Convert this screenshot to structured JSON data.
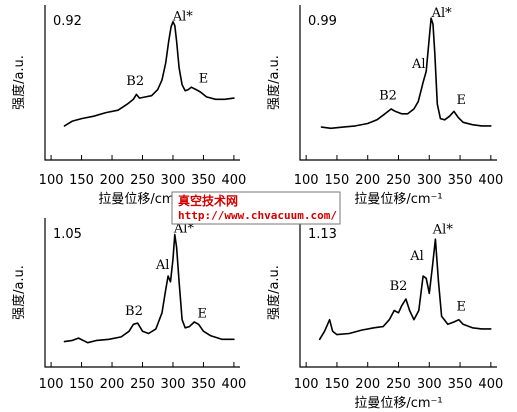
{
  "chart_data": [
    {
      "type": "line",
      "panel_value": "0.92",
      "xlabel": "拉曼位移/cm⁻¹",
      "ylabel": "强度/a.u.",
      "xticks": [
        100,
        150,
        200,
        250,
        300,
        350,
        400
      ],
      "xlim": [
        90,
        410
      ],
      "ylim": [
        0,
        1
      ],
      "x": [
        122,
        135,
        150,
        170,
        190,
        210,
        225,
        235,
        240,
        245,
        255,
        265,
        275,
        282,
        288,
        293,
        297,
        300,
        303,
        306,
        310,
        315,
        320,
        325,
        330,
        338,
        345,
        355,
        370,
        385,
        400
      ],
      "values": [
        0.1,
        0.14,
        0.16,
        0.18,
        0.21,
        0.23,
        0.28,
        0.32,
        0.36,
        0.33,
        0.34,
        0.35,
        0.4,
        0.48,
        0.62,
        0.8,
        0.92,
        0.96,
        0.93,
        0.8,
        0.58,
        0.44,
        0.39,
        0.4,
        0.42,
        0.4,
        0.38,
        0.34,
        0.32,
        0.32,
        0.33
      ],
      "peak_labels": [
        {
          "text": "B2",
          "x": 238,
          "y": 0.44
        },
        {
          "text": "Al*",
          "x": 316,
          "y": 0.97
        },
        {
          "text": "E",
          "x": 350,
          "y": 0.46
        }
      ]
    },
    {
      "type": "line",
      "panel_value": "0.99",
      "xlabel": "拉曼位移/cm⁻¹",
      "ylabel": "强度/a.u.",
      "xticks": [
        100,
        150,
        200,
        250,
        300,
        350,
        400
      ],
      "xlim": [
        90,
        410
      ],
      "ylim": [
        0,
        1
      ],
      "x": [
        125,
        140,
        160,
        180,
        200,
        215,
        228,
        238,
        245,
        255,
        265,
        275,
        282,
        287,
        290,
        295,
        300,
        303,
        306,
        309,
        313,
        318,
        325,
        333,
        340,
        347,
        355,
        370,
        385,
        400
      ],
      "values": [
        0.09,
        0.08,
        0.09,
        0.1,
        0.12,
        0.15,
        0.2,
        0.24,
        0.22,
        0.2,
        0.2,
        0.24,
        0.3,
        0.4,
        0.46,
        0.55,
        0.83,
        0.99,
        0.94,
        0.7,
        0.28,
        0.16,
        0.15,
        0.18,
        0.22,
        0.17,
        0.13,
        0.11,
        0.1,
        0.1
      ],
      "peak_labels": [
        {
          "text": "B2",
          "x": 233,
          "y": 0.32
        },
        {
          "text": "Al",
          "x": 283,
          "y": 0.58
        },
        {
          "text": "Al*",
          "x": 320,
          "y": 1.0
        },
        {
          "text": "E",
          "x": 352,
          "y": 0.28
        }
      ]
    },
    {
      "type": "line",
      "panel_value": "1.05",
      "xlabel": "",
      "ylabel": "强度/a.u.",
      "xticks": [
        100,
        150,
        200,
        250,
        300,
        350,
        400
      ],
      "xlim": [
        90,
        410
      ],
      "ylim": [
        0,
        1
      ],
      "x": [
        122,
        135,
        145,
        160,
        175,
        195,
        215,
        228,
        235,
        242,
        250,
        260,
        272,
        282,
        288,
        292,
        296,
        300,
        303,
        306,
        310,
        315,
        320,
        327,
        335,
        342,
        350,
        362,
        380,
        400
      ],
      "values": [
        0.03,
        0.04,
        0.06,
        0.02,
        0.04,
        0.05,
        0.07,
        0.12,
        0.18,
        0.19,
        0.12,
        0.1,
        0.14,
        0.28,
        0.48,
        0.6,
        0.55,
        0.75,
        0.96,
        0.85,
        0.55,
        0.22,
        0.15,
        0.16,
        0.2,
        0.18,
        0.12,
        0.08,
        0.05,
        0.05
      ],
      "peak_labels": [
        {
          "text": "B2",
          "x": 236,
          "y": 0.26
        },
        {
          "text": "Al",
          "x": 283,
          "y": 0.66
        },
        {
          "text": "Al*",
          "x": 318,
          "y": 0.98
        },
        {
          "text": "E",
          "x": 348,
          "y": 0.24
        }
      ]
    },
    {
      "type": "line",
      "panel_value": "1.13",
      "xlabel": "拉曼位移/cm⁻¹",
      "ylabel": "强度/a.u.",
      "xticks": [
        100,
        150,
        200,
        250,
        300,
        350,
        400
      ],
      "xlim": [
        90,
        410
      ],
      "ylim": [
        0,
        1
      ],
      "x": [
        122,
        130,
        138,
        143,
        150,
        170,
        190,
        210,
        225,
        235,
        243,
        250,
        255,
        262,
        268,
        275,
        283,
        290,
        295,
        300,
        305,
        310,
        315,
        320,
        330,
        340,
        348,
        355,
        370,
        385,
        400
      ],
      "values": [
        0.05,
        0.12,
        0.22,
        0.12,
        0.09,
        0.1,
        0.13,
        0.15,
        0.16,
        0.22,
        0.3,
        0.28,
        0.34,
        0.4,
        0.3,
        0.22,
        0.3,
        0.6,
        0.58,
        0.45,
        0.68,
        0.92,
        0.55,
        0.25,
        0.18,
        0.2,
        0.22,
        0.18,
        0.15,
        0.14,
        0.14
      ],
      "peak_labels": [
        {
          "text": "B2",
          "x": 250,
          "y": 0.48
        },
        {
          "text": "Al",
          "x": 280,
          "y": 0.74
        },
        {
          "text": "Al*",
          "x": 322,
          "y": 0.97
        },
        {
          "text": "E",
          "x": 352,
          "y": 0.3
        }
      ]
    }
  ],
  "watermark": {
    "line1": "真空技术网",
    "line2": "http://www.chvacuum.com/"
  }
}
